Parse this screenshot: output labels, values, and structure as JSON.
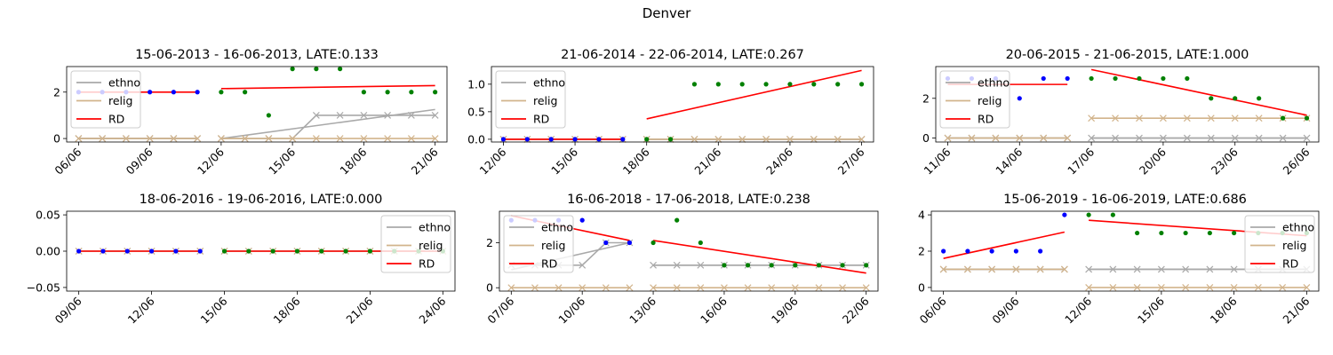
{
  "suptitle": "Denver",
  "colors": {
    "ethno": "#a9a9a9",
    "relig": "#d2b48c",
    "rd": "#ff0000",
    "pre_dots": "#0000ff",
    "post_dots": "#008000"
  },
  "chart_data": [
    {
      "type": "line",
      "title": "15-06-2013 - 16-06-2013, LATE:0.133",
      "x_start": "06/06",
      "n": 16,
      "cutoff": 6,
      "ylim": [
        -0.15,
        3.1
      ],
      "xticks": [
        "06/06",
        "09/06",
        "12/06",
        "15/06",
        "18/06",
        "21/06"
      ],
      "yticks": [
        "0",
        "2"
      ],
      "ytick_values": [
        0,
        2
      ],
      "legend": {
        "position": "upper left",
        "entries": [
          "ethno",
          "relig",
          "RD"
        ]
      },
      "dots": [
        2,
        2,
        2,
        2,
        2,
        2,
        2,
        2,
        1,
        3,
        3,
        3,
        2,
        2,
        2,
        2
      ],
      "ethno": [
        0,
        0,
        0,
        0,
        0,
        0,
        0,
        0,
        0,
        0,
        1,
        1,
        1,
        1,
        1,
        1
      ],
      "relig": [
        0,
        0,
        0,
        0,
        0,
        0,
        0,
        0,
        0,
        0,
        0,
        0,
        0,
        0,
        0,
        0
      ],
      "ethno_fit_pre": [
        0,
        0
      ],
      "ethno_fit_post": [
        0,
        1.25
      ],
      "rd_pre": [
        2,
        2
      ],
      "rd_post": [
        2.15,
        2.28
      ]
    },
    {
      "type": "line",
      "title": "21-06-2014 - 22-06-2014, LATE:0.267",
      "x_start": "12/06",
      "n": 16,
      "cutoff": 6,
      "ylim": [
        -0.05,
        1.32
      ],
      "xticks": [
        "12/06",
        "15/06",
        "18/06",
        "21/06",
        "24/06",
        "27/06"
      ],
      "yticks": [
        "0.0",
        "0.5",
        "1.0"
      ],
      "ytick_values": [
        0,
        0.5,
        1.0
      ],
      "legend": {
        "position": "upper left",
        "entries": [
          "ethno",
          "relig",
          "RD"
        ]
      },
      "dots": [
        0,
        0,
        0,
        0,
        0,
        0,
        0,
        0,
        1,
        1,
        1,
        1,
        1,
        1,
        1,
        1
      ],
      "ethno": [
        0,
        0,
        0,
        0,
        0,
        0,
        0,
        0,
        0,
        0,
        0,
        0,
        0,
        0,
        0,
        0
      ],
      "relig": [
        0,
        0,
        0,
        0,
        0,
        0,
        0,
        0,
        0,
        0,
        0,
        0,
        0,
        0,
        0,
        0
      ],
      "ethno_fit_pre": [
        0,
        0
      ],
      "ethno_fit_post": [
        0,
        0
      ],
      "rd_pre": [
        0,
        0
      ],
      "rd_post": [
        0.37,
        1.25
      ]
    },
    {
      "type": "line",
      "title": "20-06-2015 - 21-06-2015, LATE:1.000",
      "x_start": "11/06",
      "n": 16,
      "cutoff": 6,
      "ylim": [
        -0.2,
        3.6
      ],
      "xticks": [
        "11/06",
        "14/06",
        "17/06",
        "20/06",
        "23/06",
        "26/06"
      ],
      "yticks": [
        "0",
        "2"
      ],
      "ytick_values": [
        0,
        2
      ],
      "legend": {
        "position": "upper left",
        "entries": [
          "ethno",
          "relig",
          "RD"
        ]
      },
      "dots": [
        3,
        3,
        3,
        2,
        3,
        3,
        3,
        3,
        3,
        3,
        3,
        2,
        2,
        2,
        1,
        1
      ],
      "ethno": [
        0,
        0,
        0,
        0,
        0,
        0,
        0,
        0,
        0,
        0,
        0,
        0,
        0,
        0,
        0,
        0
      ],
      "relig": [
        0,
        0,
        0,
        0,
        0,
        0,
        1,
        1,
        1,
        1,
        1,
        1,
        1,
        1,
        1,
        1
      ],
      "ethno_fit_pre": [
        0,
        0
      ],
      "ethno_fit_post": [
        0,
        0
      ],
      "rd_pre": [
        2.7,
        2.7
      ],
      "rd_post": [
        3.45,
        1.15
      ]
    },
    {
      "type": "line",
      "title": "18-06-2016 - 19-06-2016, LATE:0.000",
      "x_start": "09/06",
      "n": 16,
      "cutoff": 6,
      "ylim": [
        -0.055,
        0.055
      ],
      "xticks": [
        "09/06",
        "12/06",
        "15/06",
        "18/06",
        "21/06",
        "24/06"
      ],
      "yticks": [
        "−0.05",
        "0.00",
        "0.05"
      ],
      "ytick_values": [
        -0.05,
        0,
        0.05
      ],
      "legend": {
        "position": "upper right",
        "entries": [
          "ethno",
          "relig",
          "RD"
        ]
      },
      "dots": [
        0,
        0,
        0,
        0,
        0,
        0,
        0,
        0,
        0,
        0,
        0,
        0,
        0,
        0,
        0,
        0
      ],
      "ethno": [
        0,
        0,
        0,
        0,
        0,
        0,
        0,
        0,
        0,
        0,
        0,
        0,
        0,
        0,
        0,
        0
      ],
      "relig": [
        0,
        0,
        0,
        0,
        0,
        0,
        0,
        0,
        0,
        0,
        0,
        0,
        0,
        0,
        0,
        0
      ],
      "ethno_fit_pre": [
        0,
        0
      ],
      "ethno_fit_post": [
        0,
        0
      ],
      "rd_pre": [
        0,
        0
      ],
      "rd_post": [
        0,
        0
      ]
    },
    {
      "type": "line",
      "title": "16-06-2018 - 17-06-2018, LATE:0.238",
      "x_start": "07/06",
      "n": 16,
      "cutoff": 6,
      "ylim": [
        -0.15,
        3.4
      ],
      "xticks": [
        "07/06",
        "10/06",
        "13/06",
        "16/06",
        "19/06",
        "22/06"
      ],
      "yticks": [
        "0",
        "2"
      ],
      "ytick_values": [
        0,
        2
      ],
      "legend": {
        "position": "upper left",
        "entries": [
          "ethno",
          "relig",
          "RD"
        ]
      },
      "dots": [
        3,
        3,
        3,
        3,
        2,
        2,
        2,
        3,
        2,
        1,
        1,
        1,
        1,
        1,
        1,
        1
      ],
      "ethno": [
        1,
        1,
        1,
        1,
        2,
        2,
        1,
        1,
        1,
        1,
        1,
        1,
        1,
        1,
        1,
        1
      ],
      "relig": [
        0,
        0,
        0,
        0,
        0,
        0,
        0,
        0,
        0,
        0,
        0,
        0,
        0,
        0,
        0,
        0
      ],
      "ethno_fit_pre": [
        0.8,
        2.0
      ],
      "ethno_fit_post": [
        1,
        1
      ],
      "rd_pre": [
        3.2,
        2.1
      ],
      "rd_post": [
        2.1,
        0.65
      ]
    },
    {
      "type": "line",
      "title": "15-06-2019 - 16-06-2019, LATE:0.686",
      "x_start": "06/06",
      "n": 16,
      "cutoff": 6,
      "ylim": [
        -0.2,
        4.2
      ],
      "xticks": [
        "06/06",
        "09/06",
        "12/06",
        "15/06",
        "18/06",
        "21/06"
      ],
      "yticks": [
        "0",
        "2",
        "4"
      ],
      "ytick_values": [
        0,
        2,
        4
      ],
      "legend": {
        "position": "upper right",
        "entries": [
          "ethno",
          "relig",
          "RD"
        ]
      },
      "dots": [
        2,
        2,
        2,
        2,
        2,
        4,
        4,
        4,
        3,
        3,
        3,
        3,
        3,
        3,
        3,
        3
      ],
      "ethno": [
        1,
        1,
        1,
        1,
        1,
        1,
        1,
        1,
        1,
        1,
        1,
        1,
        1,
        1,
        1,
        1
      ],
      "relig": [
        1,
        1,
        1,
        1,
        1,
        1,
        0,
        0,
        0,
        0,
        0,
        0,
        0,
        0,
        0,
        0
      ],
      "ethno_fit_pre": [
        1,
        1
      ],
      "ethno_fit_post": [
        1,
        1
      ],
      "rd_pre": [
        1.6,
        3.05
      ],
      "rd_post": [
        3.7,
        2.85
      ]
    }
  ]
}
